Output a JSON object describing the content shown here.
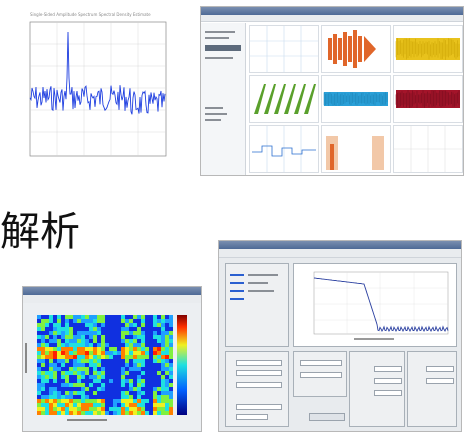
{
  "section_label": "解析",
  "fft_plot": {
    "title": "Single-Sided Amplitude Spectrum Spectral Density Estimate",
    "line_color": "#1f3fe0"
  },
  "scope_app": {
    "accent_orange": "#e0662a",
    "accent_yellow": "#e8c21c",
    "accent_green": "#5aa02c",
    "accent_cyan": "#2aa0d8",
    "accent_crimson": "#a4142a"
  },
  "spectrogram_app": {
    "colormap": [
      "#000080",
      "#0000ff",
      "#00ffff",
      "#ffff00",
      "#ff0000",
      "#800000"
    ]
  },
  "filter_app": {
    "line_color": "#2a3fa0"
  }
}
